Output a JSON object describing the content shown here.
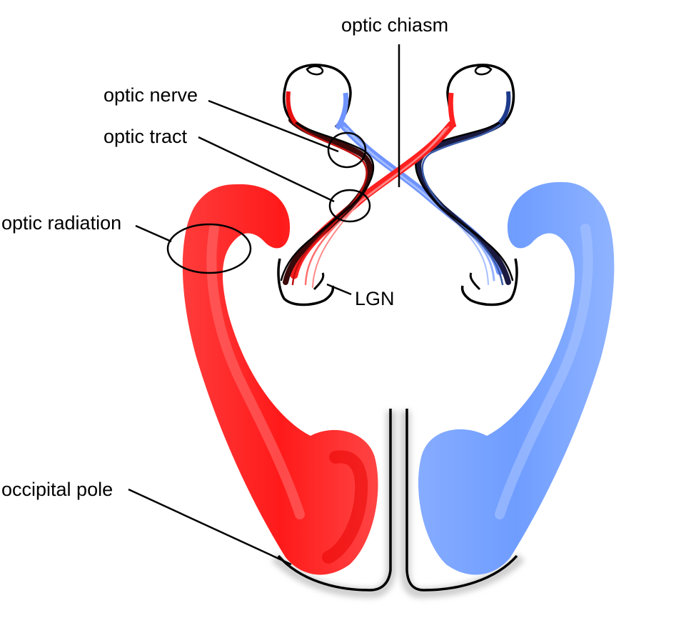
{
  "labels": {
    "optic_chiasm": "optic chiasm",
    "optic_nerve": "optic nerve",
    "optic_tract": "optic tract",
    "optic_radiation": "optic radiation",
    "lgn": "LGN",
    "occipital_pole": "occipital pole"
  },
  "colors": {
    "left_pathway": "#ff2a2a",
    "right_pathway": "#7ea7ff",
    "outline": "#000000",
    "shadow": "#d8d8d8"
  }
}
